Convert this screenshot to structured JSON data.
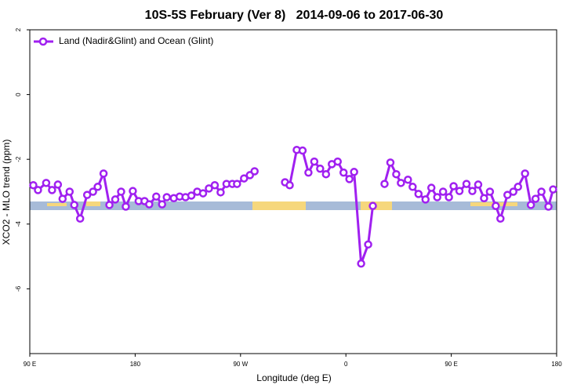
{
  "chart_data": {
    "type": "line",
    "title": "10S-5S February (Ver 8)   2014-09-06 to 2017-06-30",
    "x_label": "Longitude (deg E)",
    "y_label": "XCO2 - MLO trend (ppm)",
    "xlim": [
      90,
      540
    ],
    "xticks": [
      {
        "value": 90,
        "label": "90 E"
      },
      180,
      {
        "value": 270,
        "label": "90 W"
      },
      {
        "value": 360,
        "label": "0"
      },
      {
        "value": 450,
        "label": "90 E"
      },
      {
        "value": 540,
        "label": "180"
      }
    ],
    "ylim": [
      -8,
      2
    ],
    "yticks": [
      -6,
      -4,
      -2,
      0,
      2
    ],
    "legend": "top-left",
    "x": [
      93,
      97,
      104,
      109,
      114,
      118,
      124,
      128,
      133,
      139,
      144,
      148,
      153,
      158,
      163,
      168,
      172,
      178,
      183,
      188,
      192,
      198,
      203,
      207,
      213,
      218,
      223,
      228,
      233,
      238,
      243,
      248,
      253,
      258,
      263,
      267,
      273,
      278,
      282,
      295,
      308,
      312,
      318,
      323,
      328,
      333,
      338,
      343,
      348,
      353,
      358,
      363,
      367,
      373,
      379,
      383,
      388,
      393,
      398,
      403,
      407,
      413,
      417,
      422,
      428,
      433,
      438,
      443,
      448,
      452,
      457,
      463,
      468,
      473,
      478,
      483,
      488,
      492,
      498,
      503,
      507,
      513,
      518,
      522,
      527,
      533,
      537
    ],
    "series": [
      {
        "name": "Land (Nadir&Glint) and Ocean (Glint)",
        "color": "#a020f0",
        "values": [
          -2.8,
          -2.95,
          -2.73,
          -2.95,
          -2.78,
          -3.22,
          -3.0,
          -3.41,
          -3.83,
          -3.1,
          -3.0,
          -2.85,
          -2.44,
          -3.41,
          -3.24,
          -3.0,
          -3.46,
          -2.98,
          -3.29,
          -3.29,
          -3.39,
          -3.15,
          -3.39,
          -3.17,
          -3.2,
          -3.15,
          -3.17,
          -3.12,
          -3.0,
          -3.05,
          -2.9,
          -2.8,
          -3.02,
          -2.76,
          -2.76,
          -2.76,
          -2.59,
          -2.49,
          -2.37,
          null,
          -2.71,
          -2.8,
          -1.71,
          -1.73,
          -2.41,
          -2.07,
          -2.29,
          -2.46,
          -2.15,
          -2.07,
          -2.41,
          -2.61,
          -2.39,
          -5.22,
          -4.63,
          -3.44,
          null,
          -2.76,
          -2.1,
          -2.46,
          -2.73,
          -2.63,
          -2.85,
          -3.07,
          -3.24,
          -2.88,
          -3.17,
          -3.0,
          -3.17,
          -2.83,
          -2.98,
          -2.76,
          -2.98,
          -2.78,
          -3.2,
          -3.0,
          -3.44,
          -3.83,
          -3.1,
          -3.0,
          -2.85,
          -2.44,
          -3.41,
          -3.22,
          -3.0,
          -3.46,
          -2.93
        ]
      }
    ]
  }
}
